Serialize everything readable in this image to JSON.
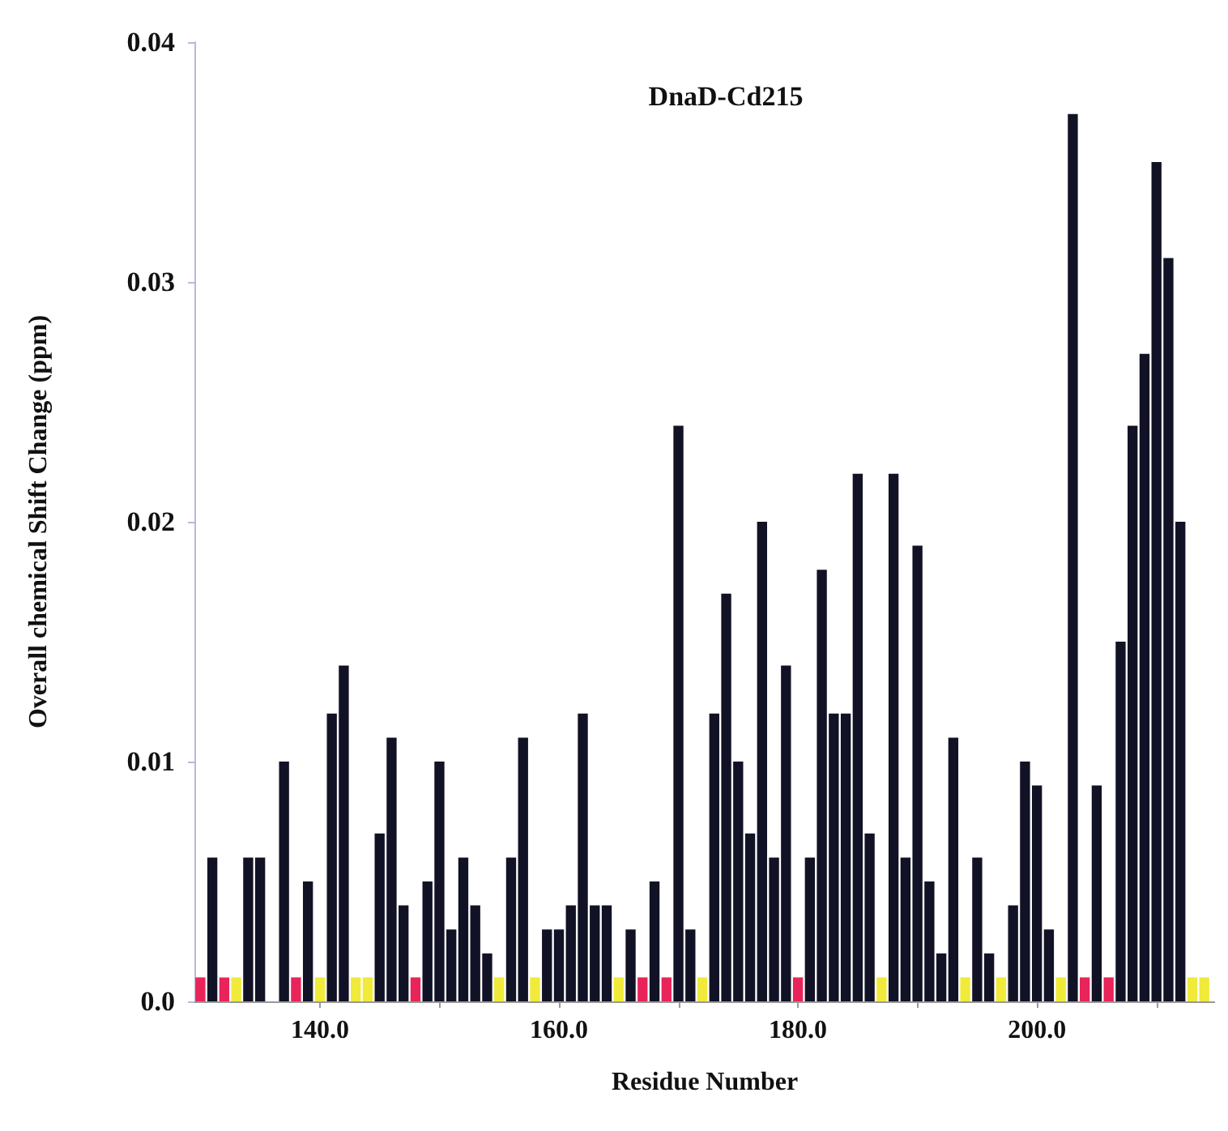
{
  "chart_data": {
    "type": "bar",
    "title": "DnaD-Cd215",
    "xlabel": "Residue Number",
    "ylabel": "Overall chemical Shift Change (ppm)",
    "xlim": [
      129.5,
      214.9
    ],
    "xticks": [
      {
        "value": 140,
        "label": "140.0"
      },
      {
        "value": 150,
        "label": null
      },
      {
        "value": 160,
        "label": "160.0"
      },
      {
        "value": 170,
        "label": null
      },
      {
        "value": 180,
        "label": "180.0"
      },
      {
        "value": 190,
        "label": null
      },
      {
        "value": 200,
        "label": "200.0"
      },
      {
        "value": 210,
        "label": null
      }
    ],
    "ylim": [
      0,
      0.04
    ],
    "yticks": [
      {
        "value": 0,
        "label": "0.0"
      },
      0.01,
      0.02,
      0.03,
      0.04
    ],
    "series": [
      {
        "color": "#121226",
        "x": [
          131,
          134,
          135,
          137,
          139,
          141,
          142,
          145,
          146,
          147,
          149,
          150,
          151,
          152,
          153,
          154,
          156,
          157,
          159,
          160,
          161,
          162,
          163,
          164,
          166,
          168,
          170,
          171,
          173,
          174,
          175,
          176,
          177,
          178,
          179,
          181,
          182,
          183,
          184,
          185,
          186,
          188,
          189,
          190,
          191,
          192,
          193,
          195,
          196,
          198,
          199,
          200,
          201,
          203,
          205,
          207,
          208,
          209,
          210,
          211,
          212
        ],
        "values": [
          0.006,
          0.006,
          0.006,
          0.01,
          0.005,
          0.012,
          0.014,
          0.007,
          0.011,
          0.004,
          0.005,
          0.01,
          0.003,
          0.006,
          0.004,
          0.002,
          0.006,
          0.011,
          0.003,
          0.003,
          0.004,
          0.012,
          0.004,
          0.004,
          0.003,
          0.005,
          0.024,
          0.003,
          0.012,
          0.017,
          0.01,
          0.007,
          0.02,
          0.006,
          0.014,
          0.006,
          0.018,
          0.012,
          0.012,
          0.022,
          0.007,
          0.022,
          0.006,
          0.019,
          0.005,
          0.002,
          0.011,
          0.006,
          0.002,
          0.004,
          0.01,
          0.009,
          0.003,
          0.037,
          0.009,
          0.015,
          0.024,
          0.027,
          0.035,
          0.031,
          0.02
        ]
      },
      {
        "color": "#e8245a",
        "x": [
          130,
          132,
          138,
          148,
          167,
          169,
          180,
          204,
          206
        ],
        "values": [
          0.001,
          0.001,
          0.001,
          0.001,
          0.001,
          0.001,
          0.001,
          0.001,
          0.001
        ]
      },
      {
        "color": "#f0ea3a",
        "x": [
          133,
          140,
          143,
          144,
          155,
          158,
          165,
          172,
          187,
          194,
          197,
          202,
          213,
          214
        ],
        "values": [
          0.001,
          0.001,
          0.001,
          0.001,
          0.001,
          0.001,
          0.001,
          0.001,
          0.001,
          0.001,
          0.001,
          0.001,
          0.001,
          0.001
        ]
      }
    ]
  }
}
